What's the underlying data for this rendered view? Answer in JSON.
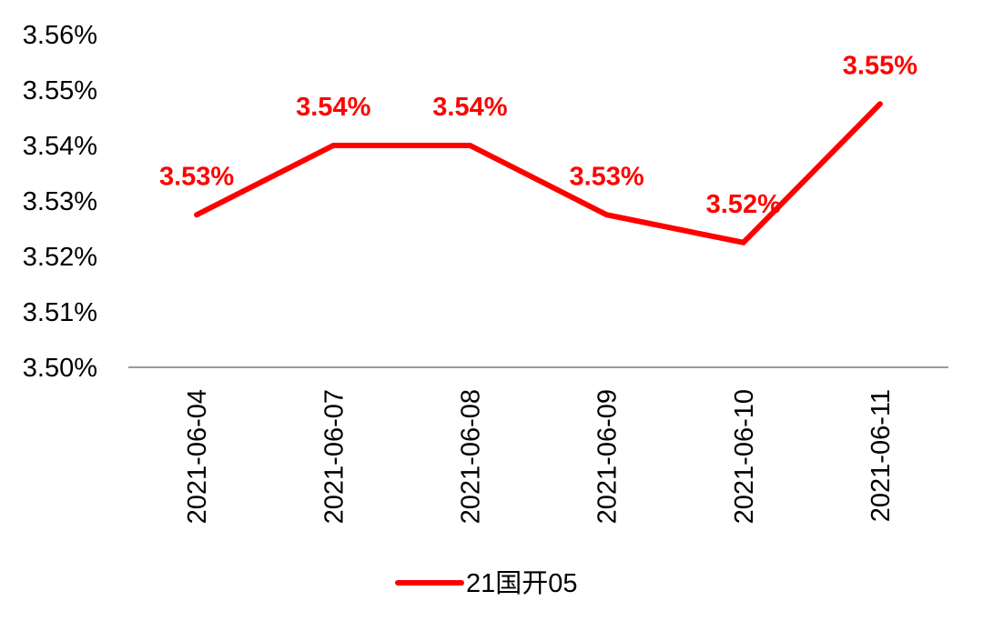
{
  "chart_data": {
    "type": "line",
    "title": "",
    "xlabel": "",
    "ylabel": "",
    "categories": [
      "2021-06-04",
      "2021-06-07",
      "2021-06-08",
      "2021-06-09",
      "2021-06-10",
      "2021-06-11"
    ],
    "series": [
      {
        "name": "21国开05",
        "values": [
          3.5275,
          3.54,
          3.54,
          3.5275,
          3.5225,
          3.5475
        ],
        "labels": [
          "3.53%",
          "3.54%",
          "3.54%",
          "3.53%",
          "3.52%",
          "3.55%"
        ],
        "color": "#ff0000"
      }
    ],
    "ylim": [
      3.5,
      3.56
    ],
    "yticks": [
      "3.50%",
      "3.51%",
      "3.52%",
      "3.53%",
      "3.54%",
      "3.55%",
      "3.56%"
    ],
    "grid": false,
    "legend": "bottom"
  }
}
